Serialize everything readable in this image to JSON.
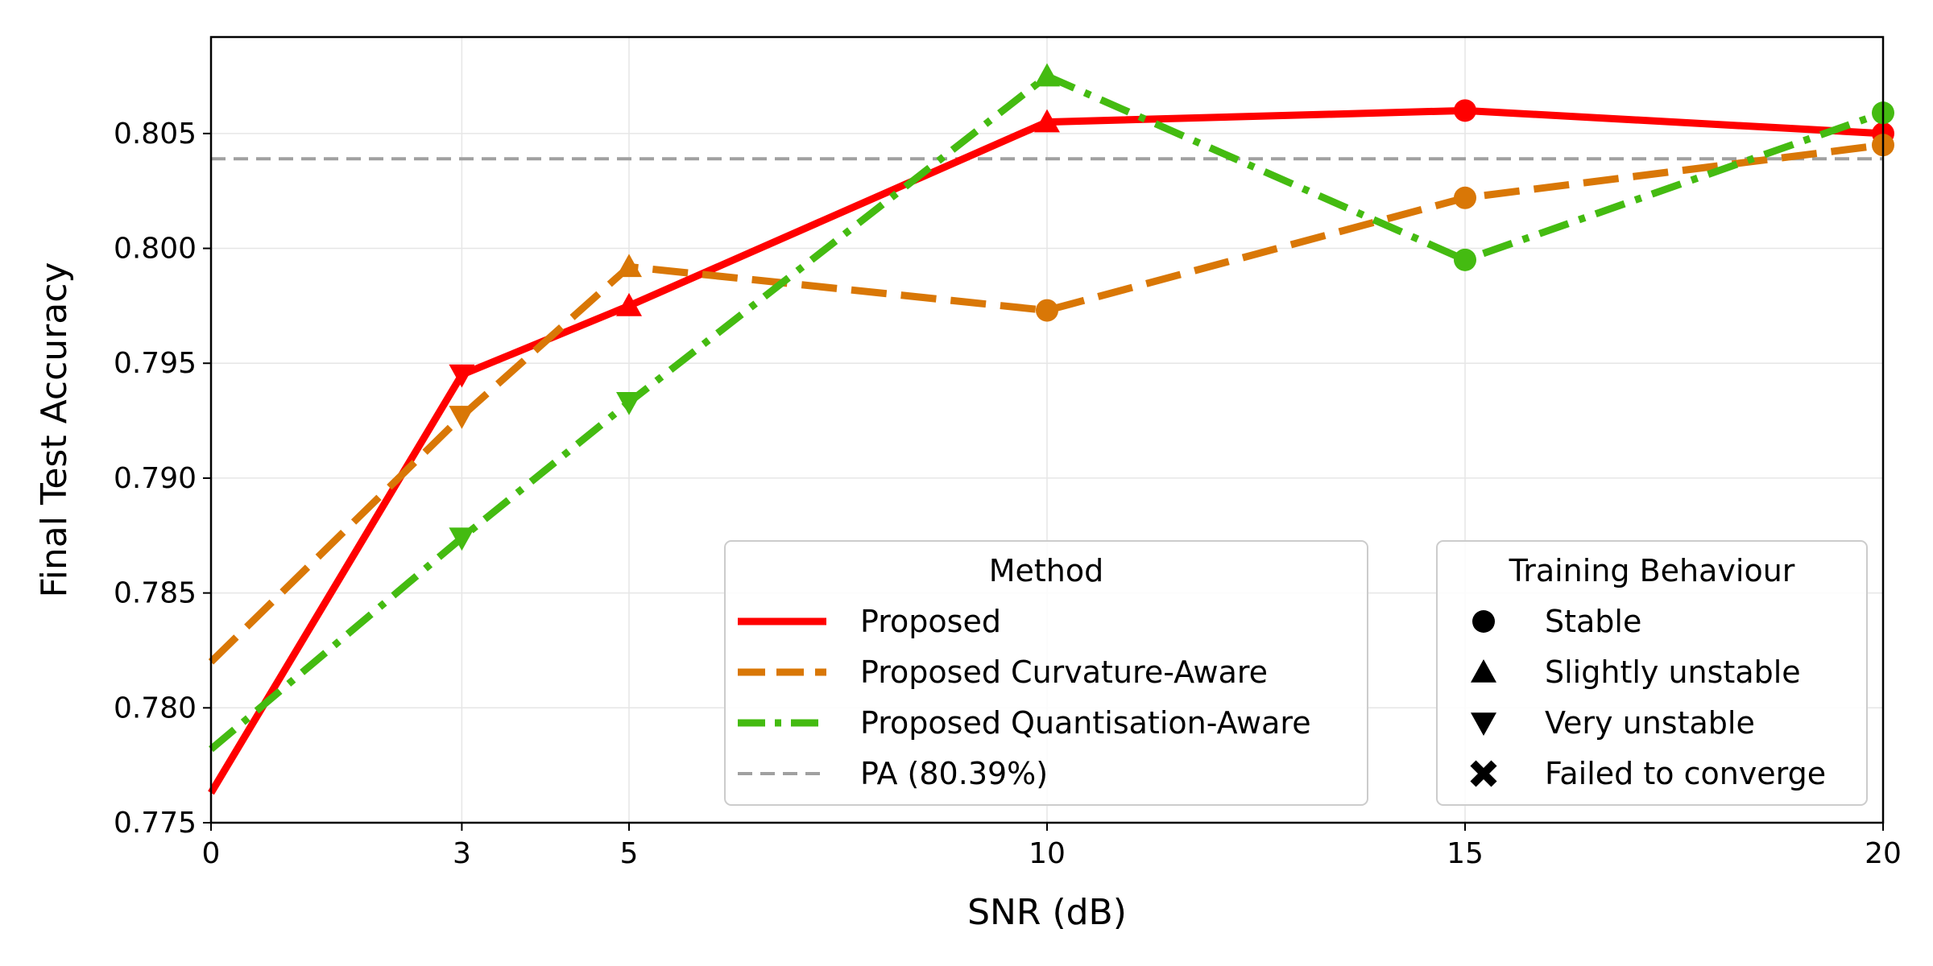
{
  "chart_data": {
    "type": "line",
    "title": "",
    "xlabel": "SNR (dB)",
    "ylabel": "Final Test Accuracy",
    "xlim": [
      0,
      20
    ],
    "ylim": [
      0.775,
      0.8092
    ],
    "x_ticks": [
      0,
      3,
      5,
      10,
      15,
      20
    ],
    "x_tick_labels": [
      "0",
      "3",
      "5",
      "10",
      "15",
      "20"
    ],
    "y_ticks": [
      0.775,
      0.78,
      0.785,
      0.79,
      0.795,
      0.8,
      0.805
    ],
    "y_tick_labels": [
      "0.775",
      "0.780",
      "0.785",
      "0.790",
      "0.795",
      "0.800",
      "0.805"
    ],
    "grid": true,
    "series": [
      {
        "name": "Proposed",
        "color": "#ff0000",
        "linestyle": "solid",
        "x": [
          0,
          3,
          5,
          10,
          15,
          20
        ],
        "values": [
          0.7763,
          0.7945,
          0.7975,
          0.8055,
          0.806,
          0.805
        ],
        "markers": [
          "none",
          "very_unstable",
          "slightly_unstable",
          "slightly_unstable",
          "stable",
          "stable"
        ]
      },
      {
        "name": "Proposed Curvature-Aware",
        "color": "#d97706",
        "linestyle": "dashed",
        "x": [
          0,
          3,
          5,
          10,
          15,
          20
        ],
        "values": [
          0.782,
          0.7927,
          0.7992,
          0.7973,
          0.8022,
          0.8045
        ],
        "markers": [
          "none",
          "very_unstable",
          "slightly_unstable",
          "stable",
          "stable",
          "stable"
        ]
      },
      {
        "name": "Proposed Quantisation-Aware",
        "color": "#44bb11",
        "linestyle": "dashdot",
        "x": [
          0,
          3,
          5,
          10,
          15,
          20
        ],
        "values": [
          0.7782,
          0.7874,
          0.7933,
          0.8075,
          0.7995,
          0.8059
        ],
        "markers": [
          "none",
          "very_unstable",
          "very_unstable",
          "slightly_unstable",
          "stable",
          "stable"
        ]
      }
    ],
    "reference_lines": [
      {
        "name": "PA (80.39%)",
        "value": 0.8039,
        "color": "#a0a0a0",
        "linestyle": "dashed"
      }
    ],
    "legends": [
      {
        "title": "Method",
        "placement": "lower-center",
        "entries": [
          {
            "label": "Proposed",
            "color": "#ff0000",
            "style": "solid"
          },
          {
            "label": "Proposed Curvature-Aware",
            "color": "#d97706",
            "style": "dashed"
          },
          {
            "label": "Proposed Quantisation-Aware",
            "color": "#44bb11",
            "style": "dashdot"
          },
          {
            "label": "PA (80.39%)",
            "color": "#a0a0a0",
            "style": "thin-dashed"
          }
        ]
      },
      {
        "title": "Training Behaviour",
        "placement": "lower-right",
        "entries": [
          {
            "label": "Stable",
            "marker": "stable"
          },
          {
            "label": "Slightly unstable",
            "marker": "slightly_unstable"
          },
          {
            "label": "Very unstable",
            "marker": "very_unstable"
          },
          {
            "label": "Failed to converge",
            "marker": "failed"
          }
        ]
      }
    ]
  }
}
